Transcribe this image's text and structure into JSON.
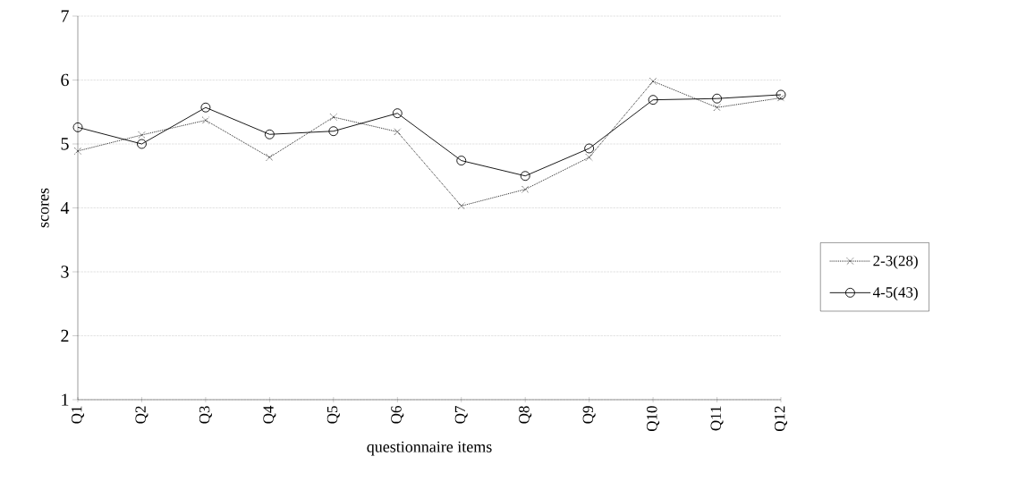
{
  "chart_data": {
    "type": "line",
    "xlabel": "questionnaire items",
    "ylabel": "scores",
    "categories": [
      "Q1",
      "Q2",
      "Q3",
      "Q4",
      "Q5",
      "Q6",
      "Q7",
      "Q8",
      "Q9",
      "Q10",
      "Q11",
      "Q12"
    ],
    "series": [
      {
        "name": "2-3(28)",
        "color": "#000000",
        "marker": "cross",
        "line_style": "dotted",
        "values": [
          4.89,
          5.14,
          5.37,
          4.79,
          5.42,
          5.19,
          4.03,
          4.29,
          4.79,
          5.98,
          5.57,
          5.72
        ]
      },
      {
        "name": "4-5(43)",
        "color": "#000000",
        "marker": "circle",
        "line_style": "solid",
        "values": [
          5.26,
          5.0,
          5.57,
          5.15,
          5.2,
          5.48,
          4.74,
          4.5,
          4.93,
          5.69,
          5.71,
          5.77
        ]
      }
    ],
    "ylim": [
      1,
      7
    ],
    "yticks": [
      1,
      2,
      3,
      4,
      5,
      6,
      7
    ],
    "grid": "y",
    "legend": "right"
  }
}
